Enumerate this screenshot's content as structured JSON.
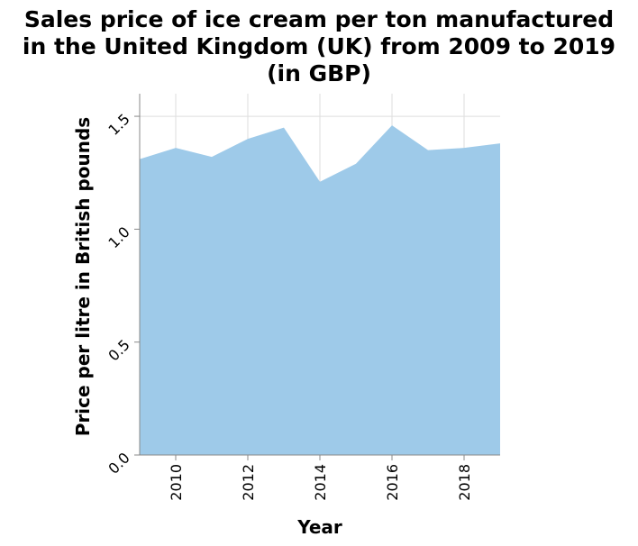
{
  "chart_data": {
    "type": "area",
    "title_lines": [
      "Sales price of ice cream per ton manufactured",
      "in the United Kingdom (UK) from 2009 to 2019",
      "(in GBP)"
    ],
    "xlabel": "Year",
    "ylabel": "Price per litre in British pounds",
    "x": [
      2009,
      2010,
      2011,
      2012,
      2013,
      2014,
      2015,
      2016,
      2017,
      2018,
      2019
    ],
    "values": [
      1.31,
      1.36,
      1.32,
      1.4,
      1.45,
      1.21,
      1.29,
      1.46,
      1.35,
      1.36,
      1.38
    ],
    "xlim": [
      2009,
      2019
    ],
    "ylim": [
      0,
      1.6
    ],
    "x_ticks": [
      2010,
      2012,
      2014,
      2016,
      2018
    ],
    "y_ticks": [
      0.0,
      0.5,
      1.0,
      1.5
    ],
    "y_tick_labels": [
      "0.0",
      "0.5",
      "1.0",
      "1.5"
    ],
    "grid": true,
    "fill_color": "#9ecae9",
    "grid_color": "#dddddd",
    "axis_color": "#888888"
  }
}
